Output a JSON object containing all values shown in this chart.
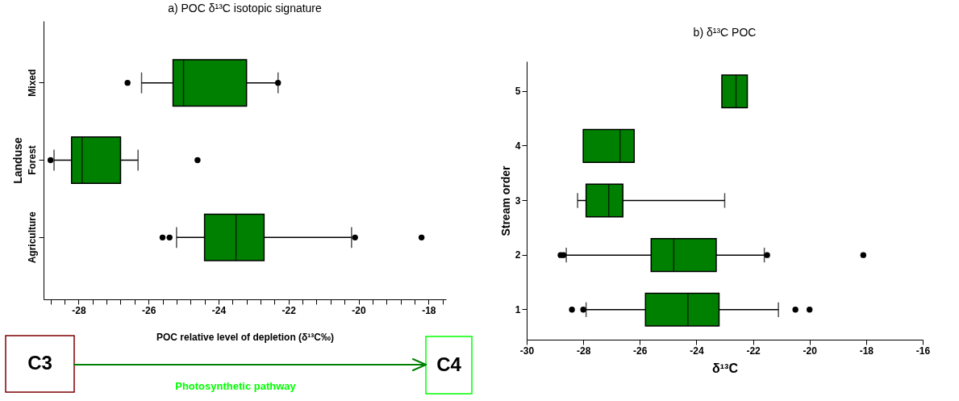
{
  "chart_data": [
    {
      "type": "box",
      "orientation": "horizontal",
      "title": "a) POC δ¹³C isotopic signature",
      "xlabel": "POC relative level of depletion (δ¹³C‰)",
      "ylabel": "Landuse",
      "categories": [
        "Mixed",
        "Forest",
        "Agriculture"
      ],
      "series": [
        {
          "color": "#008000",
          "boxes": [
            {
              "low": -26.2,
              "q1": -25.3,
              "median": -25.0,
              "q3": -23.2,
              "high": -22.3,
              "outliers": [
                -26.6,
                -22.3
              ]
            },
            {
              "low": -28.7,
              "q1": -28.2,
              "median": -27.9,
              "q3": -26.8,
              "high": -26.3,
              "outliers": [
                -28.8,
                -24.6
              ]
            },
            {
              "low": -25.2,
              "q1": -24.4,
              "median": -23.5,
              "q3": -22.7,
              "high": -20.2,
              "outliers": [
                -25.6,
                -25.4,
                -20.1,
                -18.2
              ]
            }
          ]
        }
      ],
      "xlim": [
        -29,
        -17.5
      ],
      "xticks": [
        {
          "value": -28.8,
          "label": null
        },
        {
          "value": -28.4,
          "label": null
        },
        -28,
        {
          "value": -27.6,
          "label": null
        },
        {
          "value": -27.2,
          "label": null
        },
        {
          "value": -26.8,
          "label": null
        },
        {
          "value": -26.4,
          "label": null
        },
        -26,
        {
          "value": -25.6,
          "label": null
        },
        {
          "value": -25.2,
          "label": null
        },
        {
          "value": -24.8,
          "label": null
        },
        {
          "value": -24.4,
          "label": null
        },
        -24,
        {
          "value": -23.6,
          "label": null
        },
        {
          "value": -23.2,
          "label": null
        },
        {
          "value": -22.8,
          "label": null
        },
        {
          "value": -22.4,
          "label": null
        },
        -22,
        {
          "value": -21.6,
          "label": null
        },
        {
          "value": -21.2,
          "label": null
        },
        {
          "value": -20.8,
          "label": null
        },
        {
          "value": -20.4,
          "label": null
        },
        -20,
        {
          "value": -19.6,
          "label": null
        },
        {
          "value": -19.2,
          "label": null
        },
        {
          "value": -18.8,
          "label": null
        },
        {
          "value": -18.4,
          "label": null
        },
        -18,
        {
          "value": -17.6,
          "label": null
        }
      ],
      "annotations": [
        "C3",
        "C4",
        "Photosynthetic pathway"
      ]
    },
    {
      "type": "box",
      "orientation": "horizontal",
      "title": "b) δ¹³C POC",
      "xlabel": "δ¹³C",
      "ylabel": "Stream order",
      "categories": [
        "5",
        "4",
        "3",
        "2",
        "1"
      ],
      "series": [
        {
          "color": "#008000",
          "boxes": [
            {
              "low": -23.1,
              "q1": -23.1,
              "median": -22.6,
              "q3": -22.2,
              "high": -22.2
            },
            {
              "low": -28.0,
              "q1": -28.0,
              "median": -26.7,
              "q3": -26.2,
              "high": -26.2
            },
            {
              "low": -28.2,
              "q1": -27.9,
              "median": -27.1,
              "q3": -26.6,
              "high": -23.0
            },
            {
              "low": -28.6,
              "q1": -25.6,
              "median": -24.8,
              "q3": -23.3,
              "high": -21.6,
              "outliers": [
                -28.8,
                -28.7,
                -21.5,
                -18.1
              ]
            },
            {
              "low": -27.9,
              "q1": -25.8,
              "median": -24.3,
              "q3": -23.2,
              "high": -21.1,
              "outliers": [
                -28.4,
                -28.0,
                -20.5,
                -20.0
              ]
            }
          ]
        }
      ],
      "xlim": [
        -30,
        -16
      ],
      "xticks": [
        -30,
        -28,
        -26,
        -24,
        -22,
        -20,
        -18,
        -16
      ]
    }
  ]
}
